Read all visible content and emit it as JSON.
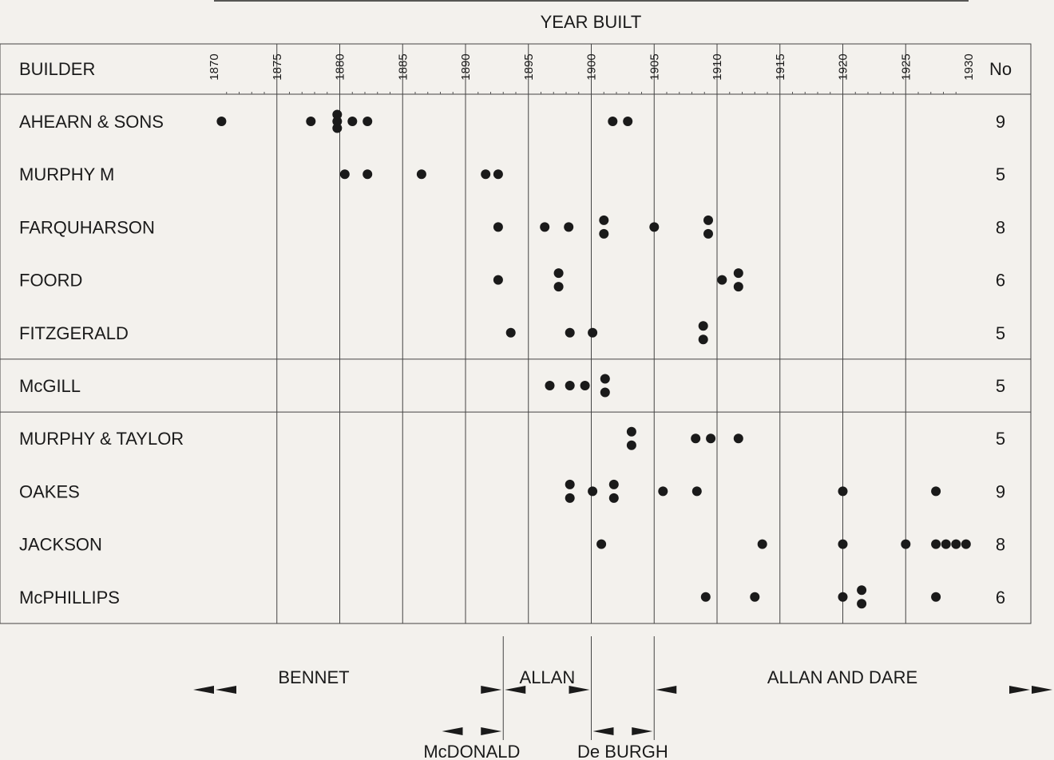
{
  "chart_data": {
    "type": "scatter",
    "title": "YEAR BUILT",
    "builder_header": "BUILDER",
    "count_header": "No",
    "x_ticks": [
      1870,
      1875,
      1880,
      1885,
      1890,
      1895,
      1900,
      1905,
      1910,
      1915,
      1920,
      1925,
      1930
    ],
    "xlim": [
      1869,
      1931
    ],
    "groups": [
      [
        0,
        4
      ],
      [
        5,
        5
      ],
      [
        6,
        9
      ]
    ],
    "rows": [
      {
        "builder": "AHEARN & SONS",
        "count": "9",
        "points": [
          [
            1870.6,
            0
          ],
          [
            1877.7,
            0
          ],
          [
            1879.8,
            1
          ],
          [
            1879.8,
            0
          ],
          [
            1879.8,
            -1
          ],
          [
            1881.0,
            0
          ],
          [
            1882.2,
            0
          ],
          [
            1901.7,
            0
          ],
          [
            1902.9,
            0
          ]
        ]
      },
      {
        "builder": "MURPHY M",
        "count": "5",
        "points": [
          [
            1880.4,
            0
          ],
          [
            1882.2,
            0
          ],
          [
            1886.5,
            0
          ],
          [
            1891.6,
            0
          ],
          [
            1892.6,
            0
          ]
        ]
      },
      {
        "builder": "FARQUHARSON",
        "count": "8",
        "points": [
          [
            1892.6,
            0
          ],
          [
            1896.3,
            0
          ],
          [
            1898.2,
            0
          ],
          [
            1901.0,
            1
          ],
          [
            1901.0,
            -1
          ],
          [
            1905.0,
            0
          ],
          [
            1909.3,
            1
          ],
          [
            1909.3,
            -1
          ]
        ]
      },
      {
        "builder": "FOORD",
        "count": "6",
        "points": [
          [
            1892.6,
            0
          ],
          [
            1897.4,
            1
          ],
          [
            1897.4,
            -1
          ],
          [
            1910.4,
            0
          ],
          [
            1911.7,
            1
          ],
          [
            1911.7,
            -1
          ]
        ]
      },
      {
        "builder": "FITZGERALD",
        "count": "5",
        "points": [
          [
            1893.6,
            0
          ],
          [
            1898.3,
            0
          ],
          [
            1900.1,
            0
          ],
          [
            1908.9,
            1
          ],
          [
            1908.9,
            -1
          ]
        ]
      },
      {
        "builder": "McGILL",
        "count": "5",
        "points": [
          [
            1896.7,
            0
          ],
          [
            1898.3,
            0
          ],
          [
            1899.5,
            0
          ],
          [
            1901.1,
            1
          ],
          [
            1901.1,
            -1
          ]
        ]
      },
      {
        "builder": "MURPHY & TAYLOR",
        "count": "5",
        "points": [
          [
            1903.2,
            1
          ],
          [
            1903.2,
            -1
          ],
          [
            1908.3,
            0
          ],
          [
            1909.5,
            0
          ],
          [
            1911.7,
            0
          ]
        ]
      },
      {
        "builder": "OAKES",
        "count": "9",
        "points": [
          [
            1898.3,
            1
          ],
          [
            1898.3,
            -1
          ],
          [
            1900.1,
            0
          ],
          [
            1901.8,
            1
          ],
          [
            1901.8,
            -1
          ],
          [
            1905.7,
            0
          ],
          [
            1908.4,
            0
          ],
          [
            1920.0,
            0
          ],
          [
            1927.4,
            0
          ]
        ]
      },
      {
        "builder": "JACKSON",
        "count": "8",
        "points": [
          [
            1900.8,
            0
          ],
          [
            1913.6,
            0
          ],
          [
            1920.0,
            0
          ],
          [
            1925.0,
            0
          ],
          [
            1927.4,
            0
          ],
          [
            1928.2,
            0
          ],
          [
            1929.0,
            0
          ],
          [
            1929.8,
            0
          ]
        ]
      },
      {
        "builder": "McPHILLIPS",
        "count": "6",
        "points": [
          [
            1909.1,
            0
          ],
          [
            1913.0,
            0
          ],
          [
            1920.0,
            0
          ],
          [
            1921.5,
            1
          ],
          [
            1921.5,
            -1
          ],
          [
            1927.4,
            0
          ]
        ]
      }
    ],
    "periods": [
      {
        "label": "BENNET",
        "start": 1869,
        "end": 1893,
        "tier": "upper",
        "open_start": true
      },
      {
        "label": "ALLAN",
        "start": 1893,
        "end": 1900,
        "tier": "upper"
      },
      {
        "label": "ALLAN AND DARE",
        "start": 1905,
        "end": 1931,
        "tier": "upper",
        "open_end": true
      },
      {
        "label": "McDONALD",
        "start": 1888,
        "end": 1893,
        "tier": "lower"
      },
      {
        "label": "De BURGH",
        "start": 1900,
        "end": 1905,
        "tier": "lower"
      }
    ],
    "period_markers": [
      1893,
      1900,
      1905
    ]
  }
}
